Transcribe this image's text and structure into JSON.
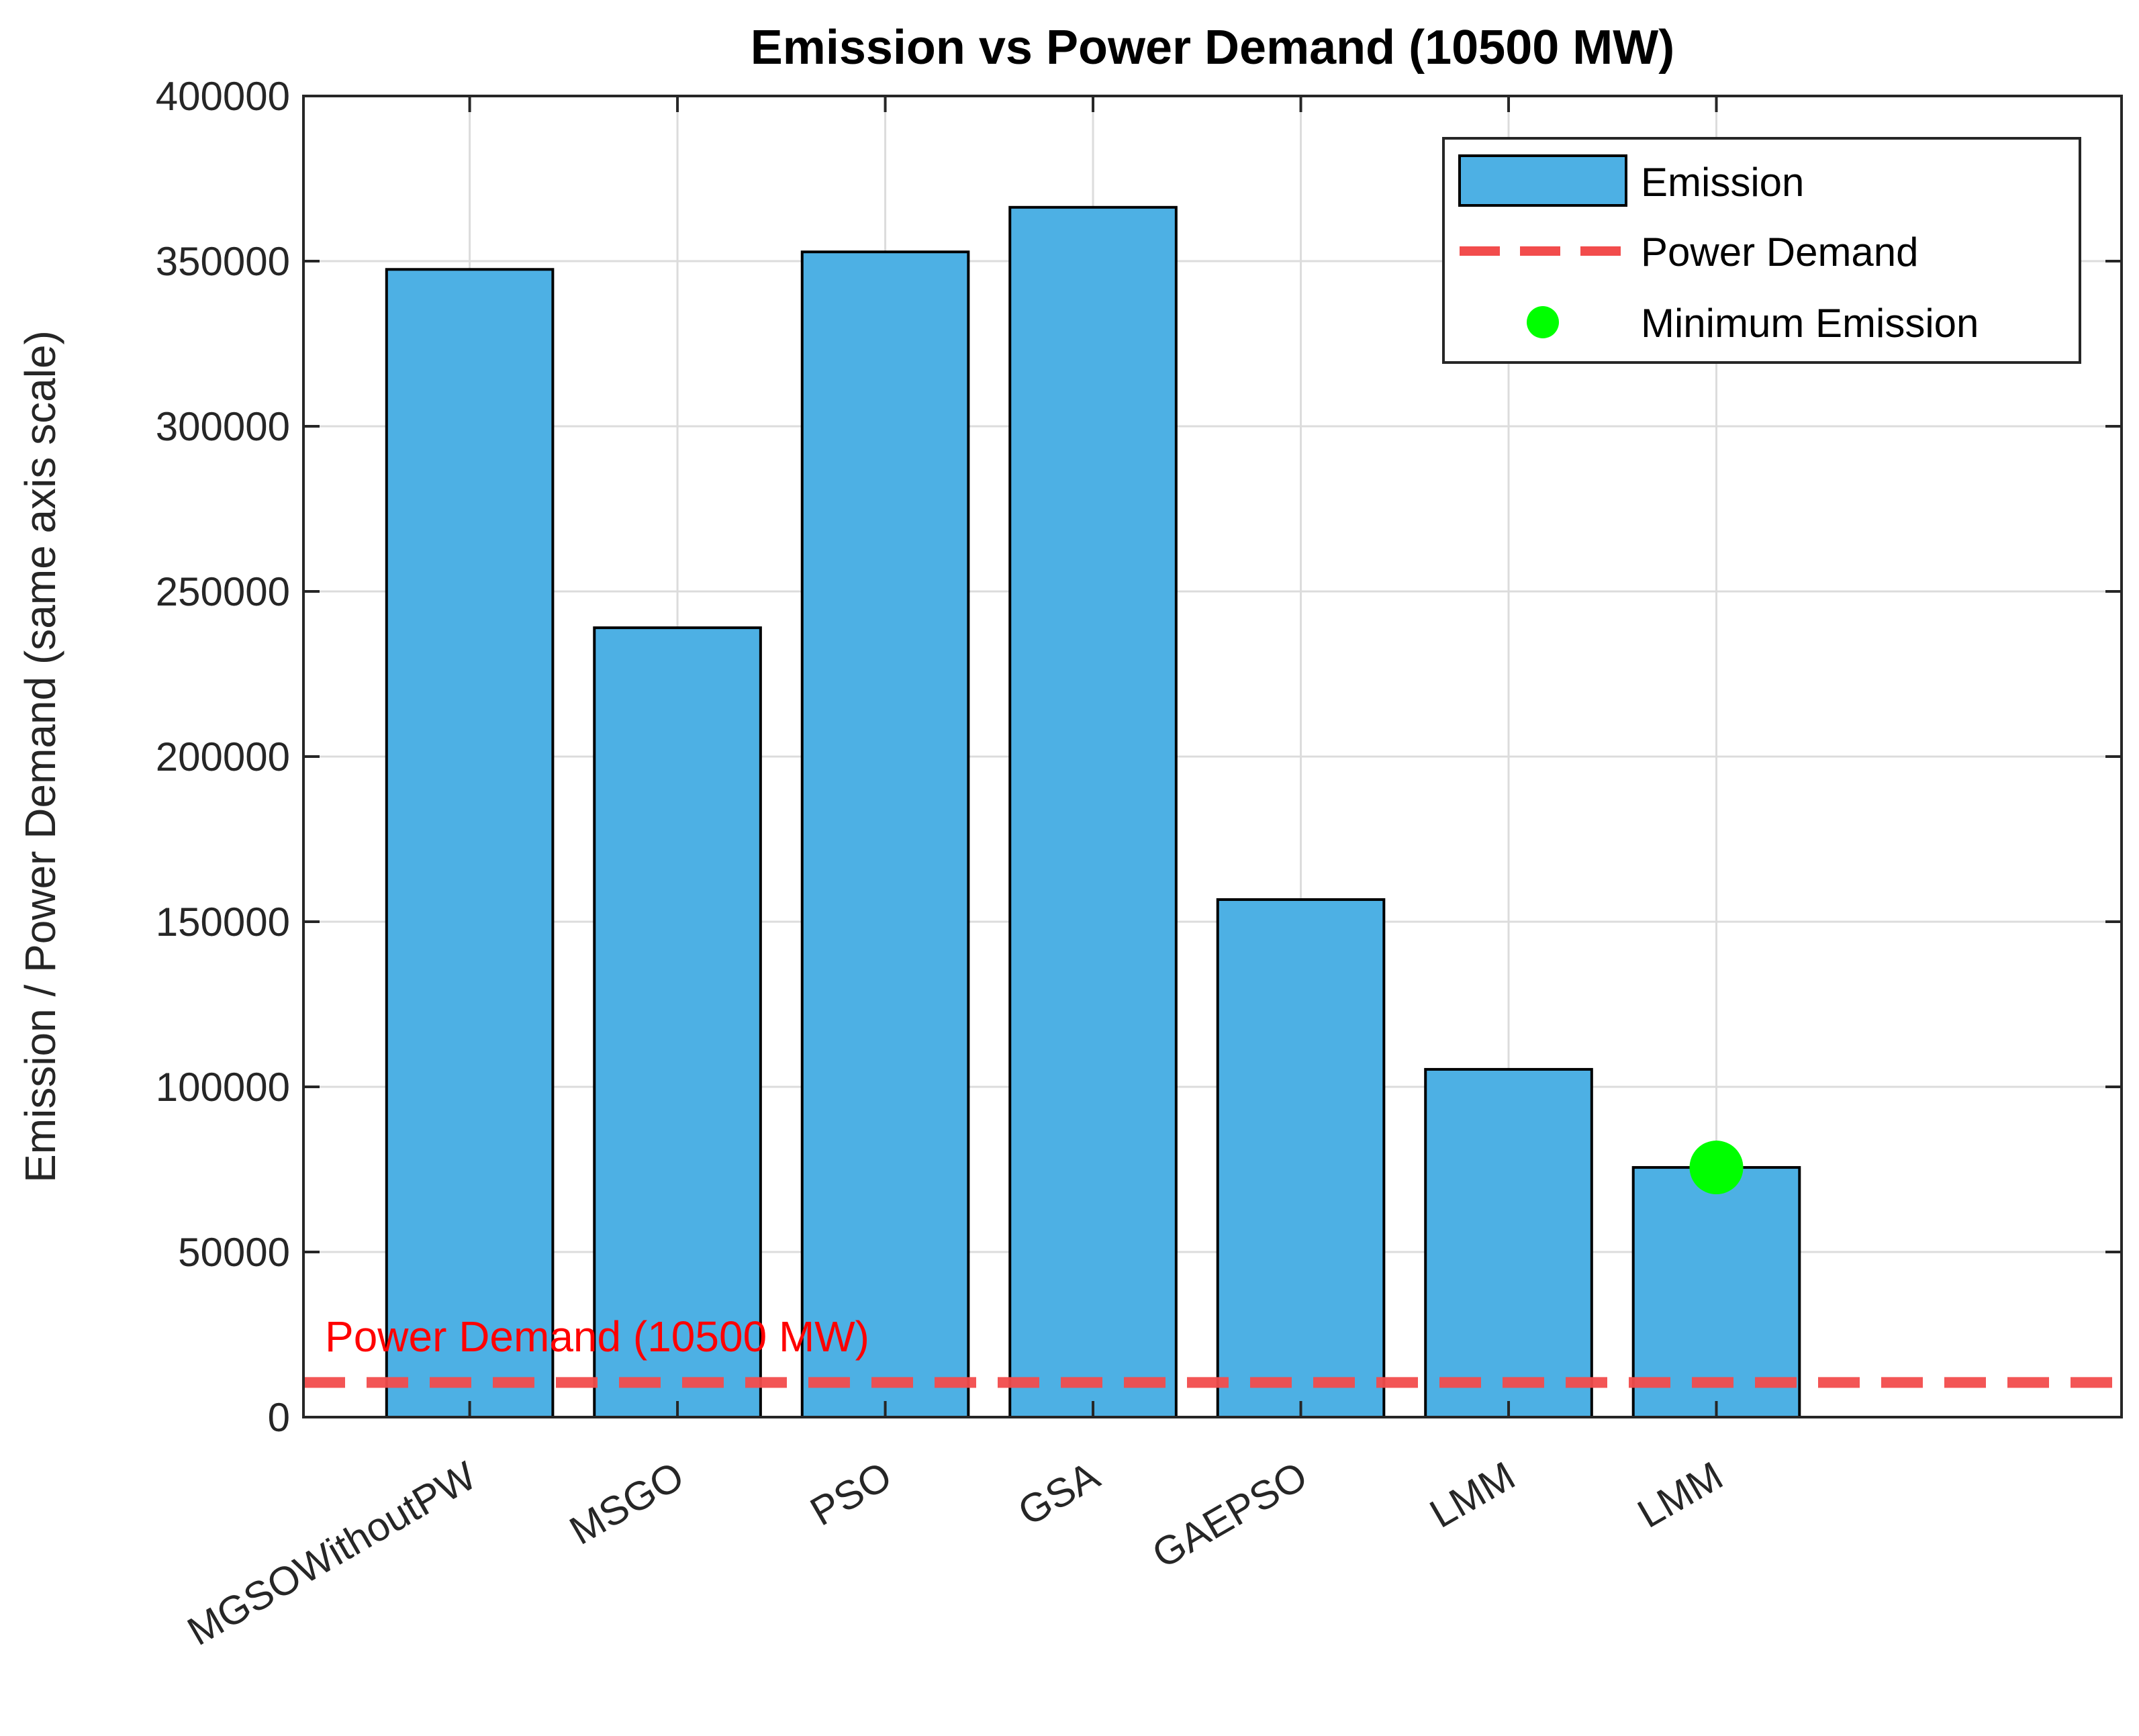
{
  "chart_data": {
    "type": "bar",
    "title": "Emission vs Power Demand (10500 MW)",
    "xlabel": "",
    "ylabel": "Emission / Power Demand (same axis scale)",
    "categories": [
      "MGSOWithoutPW",
      "MSGO",
      "PSO",
      "GSA",
      "GAEPSO",
      "LMM",
      "LMM"
    ],
    "values": [
      347500,
      239000,
      352800,
      366300,
      156700,
      105300,
      75600
    ],
    "ylim": [
      0,
      400000
    ],
    "yticks": [
      0,
      50000,
      100000,
      150000,
      200000,
      250000,
      300000,
      350000,
      400000
    ],
    "ytick_labels": [
      "0",
      "50000",
      "100000",
      "150000",
      "200000",
      "250000",
      "300000",
      "350000",
      "400000"
    ],
    "xlim": [
      0.2,
      8.95
    ],
    "grid": true,
    "bar_color": "#4DB0E4",
    "reference_line": {
      "label": "Power Demand",
      "value": 10500,
      "color": "#F24C4C",
      "style": "dashed"
    },
    "reference_annotation": {
      "text": "Power Demand (10500 MW)",
      "color": "#FF0000"
    },
    "minimum_marker": {
      "label": "Minimum Emission",
      "index": 6,
      "value": 75600,
      "color": "#00FF00"
    },
    "legend": {
      "placement": "top-right",
      "entries": [
        "Emission",
        "Power Demand",
        "Minimum Emission"
      ]
    }
  }
}
